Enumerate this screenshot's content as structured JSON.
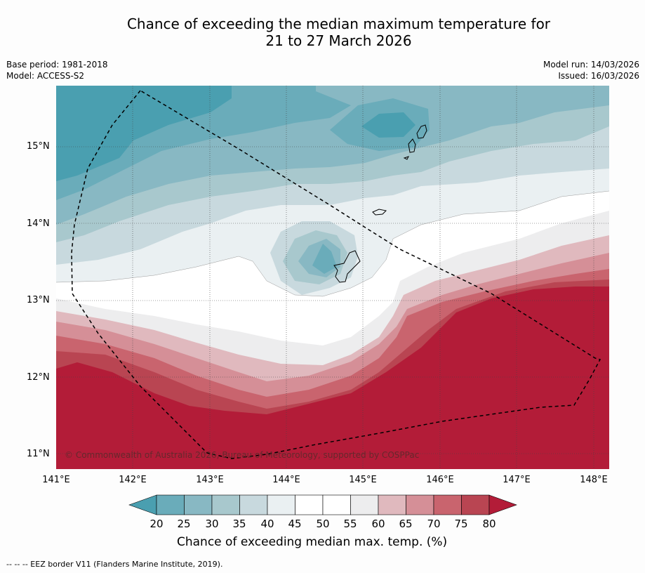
{
  "title": {
    "line1": "Chance of exceeding the median maximum temperature for",
    "line2": "21 to 27 March 2026"
  },
  "meta_left": {
    "base_period": "Base period: 1981-2018",
    "model": "Model: ACCESS-S2"
  },
  "meta_right": {
    "model_run": "Model run: 14/03/2026",
    "issued": "Issued: 16/03/2026"
  },
  "map": {
    "lat_labels": [
      "15°N",
      "14°N",
      "13°N",
      "12°N",
      "11°N"
    ],
    "lon_labels": [
      "141°E",
      "142°E",
      "143°E",
      "144°E",
      "145°E",
      "146°E",
      "147°E",
      "148°E"
    ],
    "copyright": "© Commonwealth of Australia 2026, Bureau of Meteorology, supported by COSPPac"
  },
  "colorbar": {
    "ticks": [
      "20",
      "25",
      "30",
      "35",
      "40",
      "45",
      "50",
      "55",
      "60",
      "65",
      "70",
      "75",
      "80"
    ],
    "colors": [
      "#4a9fb0",
      "#6aacba",
      "#88b8c3",
      "#a8c8cd",
      "#c8d9de",
      "#eaf0f2",
      "#ffffff",
      "#ffffff",
      "#ededee",
      "#e0b9be",
      "#d58f97",
      "#c9646e",
      "#b94552",
      "#b31c38"
    ],
    "label": "Chance of exceeding median max. temp. (%)"
  },
  "footnote": "-- -- -- EEZ border V11 (Flanders Marine Institute, 2019)."
}
